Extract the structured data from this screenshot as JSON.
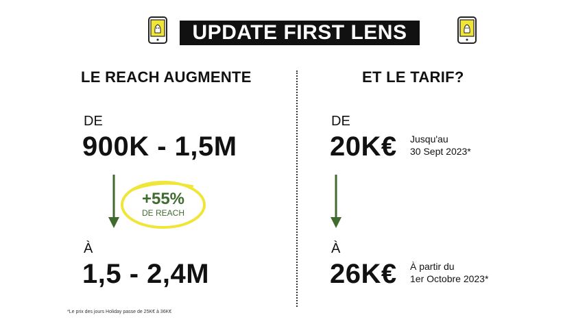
{
  "title": "UPDATE FIRST LENS",
  "icons": {
    "left": "phone-with-ghost-icon",
    "right": "phone-with-ghost-icon"
  },
  "colors": {
    "accent_green": "#3f6b2f",
    "highlight_yellow": "#f0e63a",
    "banner_bg": "#111111"
  },
  "left": {
    "heading": "LE REACH AUGMENTE",
    "from_label": "DE",
    "from_value": "900K - 1,5M",
    "growth_value": "+55%",
    "growth_label": "DE REACH",
    "to_label": "À",
    "to_value": "1,5 - 2,4M"
  },
  "right": {
    "heading": "ET LE TARIF?",
    "from_label": "DE",
    "from_value": "20K€",
    "from_note_line1": "Jusqu'au",
    "from_note_line2": "30 Sept 2023*",
    "to_label": "À",
    "to_value": "26K€",
    "to_note_line1": "À partir du",
    "to_note_line2": "1er Octobre 2023*"
  },
  "footnote": "*Le prix des jours Holiday passe de 25K€ à 36K€"
}
